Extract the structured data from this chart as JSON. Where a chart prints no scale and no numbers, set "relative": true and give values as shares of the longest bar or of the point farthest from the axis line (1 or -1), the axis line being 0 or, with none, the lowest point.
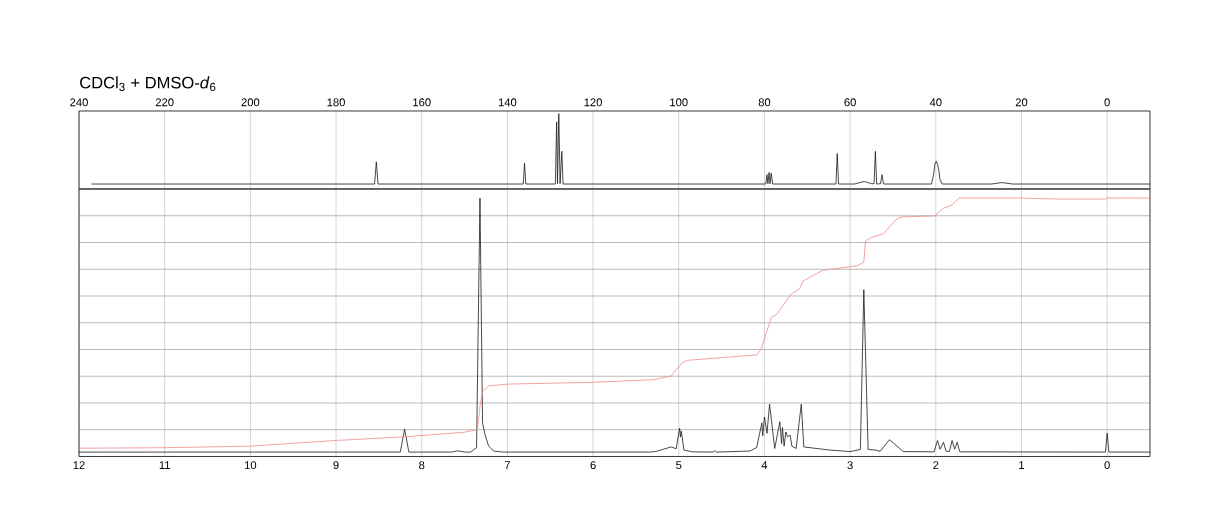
{
  "chart_data": [
    {
      "type": "line",
      "title": "CDCl$_{3}$ + DMSO-*d*$_{6}$",
      "relative": true,
      "xlim": [
        240,
        -10
      ],
      "xticks": [
        240,
        220,
        200,
        180,
        160,
        140,
        120,
        100,
        80,
        60,
        40,
        20,
        0
      ],
      "grid": "x",
      "series": [
        {
          "color": "#1a1a1a",
          "x": [
            237,
            171,
            170.6,
            170.2,
            136.3,
            136.0,
            135.7,
            128.8,
            128.5,
            128.3,
            128.0,
            127.7,
            127.3,
            127.0,
            79.7,
            79.4,
            79.2,
            78.9,
            78.7,
            78.4,
            78.1,
            63.3,
            63.0,
            62.7,
            59,
            56.7,
            55,
            54.4,
            54.1,
            53.8,
            52.9,
            52.55,
            52.2,
            41,
            40.5,
            40.2,
            39.9,
            39.6,
            39.3,
            39.0,
            38.5,
            27,
            24.6,
            22,
            -10
          ],
          "values": [
            0.066,
            0.066,
            0.36,
            0.066,
            0.066,
            0.34,
            0.066,
            0.066,
            0.89,
            0.07,
            1.0,
            0.07,
            0.5,
            0.066,
            0.066,
            0.19,
            0.07,
            0.22,
            0.07,
            0.21,
            0.066,
            0.066,
            0.47,
            0.066,
            0.066,
            0.1,
            0.07,
            0.07,
            0.5,
            0.066,
            0.07,
            0.19,
            0.066,
            0.066,
            0.2,
            0.33,
            0.37,
            0.33,
            0.25,
            0.12,
            0.066,
            0.066,
            0.085,
            0.066,
            0.066
          ]
        }
      ]
    },
    {
      "type": "line",
      "relative": true,
      "xlim": [
        12,
        -0.5
      ],
      "xticks": [
        12,
        11,
        10,
        9,
        8,
        7,
        6,
        5,
        4,
        3,
        2,
        1,
        0
      ],
      "grid": true,
      "series": [
        {
          "color": "#1a1a1a",
          "x": [
            12,
            8.25,
            8.2,
            8.15,
            7.65,
            7.58,
            7.5,
            7.43,
            7.36,
            7.32,
            7.29,
            7.26,
            7.22,
            7.16,
            7.05,
            5.35,
            5.27,
            5.09,
            5.03,
            4.99,
            4.98,
            4.97,
            4.94,
            4.84,
            4.6,
            4.58,
            4.56,
            4.17,
            4.09,
            4.03,
            4.02,
            4.0,
            3.97,
            3.94,
            3.88,
            3.82,
            3.8,
            3.79,
            3.77,
            3.75,
            3.73,
            3.7,
            3.68,
            3.63,
            3.57,
            3.54,
            3.24,
            3.0,
            2.88,
            2.84,
            2.79,
            2.7,
            2.65,
            2.54,
            2.38,
            2.02,
            1.98,
            1.95,
            1.91,
            1.88,
            1.84,
            1.81,
            1.78,
            1.75,
            1.72,
            0.02,
            0,
            -0.02,
            -0.5
          ],
          "values": [
            0.017,
            0.017,
            0.106,
            0.017,
            0.017,
            0.022,
            0.017,
            0.017,
            0.034,
            1.0,
            0.131,
            0.083,
            0.041,
            0.021,
            0.017,
            0.017,
            0.019,
            0.037,
            0.03,
            0.11,
            0.075,
            0.098,
            0.025,
            0.018,
            0.017,
            0.022,
            0.017,
            0.021,
            0.035,
            0.13,
            0.08,
            0.153,
            0.09,
            0.202,
            0.031,
            0.134,
            0.05,
            0.112,
            0.04,
            0.095,
            0.076,
            0.083,
            0.04,
            0.031,
            0.202,
            0.037,
            0.025,
            0.019,
            0.027,
            0.645,
            0.027,
            0.025,
            0.02,
            0.065,
            0.019,
            0.018,
            0.062,
            0.028,
            0.055,
            0.02,
            0.02,
            0.062,
            0.028,
            0.055,
            0.018,
            0.017,
            0.09,
            0.017,
            0.017
          ]
        },
        {
          "color": "#f08c8c",
          "x": [
            12,
            11,
            10,
            9,
            8.2,
            7.5,
            7.35,
            7.32,
            7.29,
            7.22,
            7.0,
            6.0,
            5.3,
            5.09,
            4.96,
            4.9,
            4.09,
            4.04,
            3.92,
            3.85,
            3.69,
            3.59,
            3.55,
            3.32,
            2.92,
            2.84,
            2.82,
            2.75,
            2.61,
            2.46,
            2.4,
            2.01,
            1.92,
            1.81,
            1.73,
            1.0,
            0.58,
            0.02,
            0,
            -0.5
          ],
          "values": [
            0.032,
            0.034,
            0.04,
            0.062,
            0.076,
            0.094,
            0.104,
            0.193,
            0.251,
            0.273,
            0.28,
            0.287,
            0.297,
            0.311,
            0.363,
            0.372,
            0.393,
            0.414,
            0.538,
            0.552,
            0.628,
            0.648,
            0.679,
            0.72,
            0.738,
            0.752,
            0.834,
            0.848,
            0.862,
            0.917,
            0.927,
            0.931,
            0.959,
            0.973,
            1.0,
            1.0,
            0.996,
            0.996,
            1.0,
            1.0
          ]
        }
      ]
    }
  ]
}
